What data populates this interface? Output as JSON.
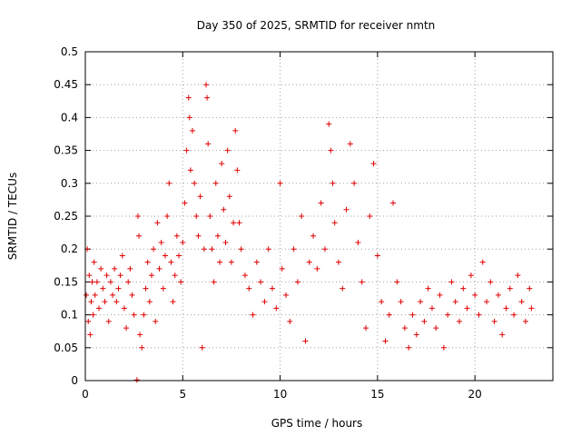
{
  "chart_data": {
    "type": "scatter",
    "title": "Day 350 of 2025, SRMTID for receiver nmtn",
    "xlabel": "GPS time / hours",
    "ylabel": "SRMTID / TECUs",
    "xlim": [
      0,
      24
    ],
    "ylim": [
      0,
      0.5
    ],
    "xticks": [
      0,
      5,
      10,
      15,
      20
    ],
    "xtick_labels": [
      "0",
      "5",
      "10",
      "15",
      "20"
    ],
    "yticks": [
      0,
      0.05,
      0.1,
      0.15,
      0.2,
      0.25,
      0.3,
      0.35,
      0.4,
      0.45,
      0.5
    ],
    "ytick_labels": [
      "0",
      "0.05",
      "0.1",
      "0.15",
      "0.2",
      "0.25",
      "0.3",
      "0.35",
      "0.4",
      "0.45",
      "0.5"
    ],
    "grid": true,
    "marker": "+",
    "series": [
      {
        "name": "SRMTID",
        "color": "#e00000",
        "points": [
          [
            0.05,
            0.13
          ],
          [
            0.1,
            0.2
          ],
          [
            0.15,
            0.09
          ],
          [
            0.2,
            0.16
          ],
          [
            0.25,
            0.07
          ],
          [
            0.3,
            0.12
          ],
          [
            0.35,
            0.15
          ],
          [
            0.4,
            0.1
          ],
          [
            0.45,
            0.18
          ],
          [
            0.5,
            0.13
          ],
          [
            0.6,
            0.15
          ],
          [
            0.7,
            0.11
          ],
          [
            0.8,
            0.17
          ],
          [
            0.9,
            0.14
          ],
          [
            1.0,
            0.12
          ],
          [
            1.1,
            0.16
          ],
          [
            1.2,
            0.09
          ],
          [
            1.3,
            0.15
          ],
          [
            1.4,
            0.13
          ],
          [
            1.5,
            0.17
          ],
          [
            1.6,
            0.12
          ],
          [
            1.7,
            0.14
          ],
          [
            1.8,
            0.16
          ],
          [
            1.9,
            0.19
          ],
          [
            2.0,
            0.11
          ],
          [
            2.1,
            0.08
          ],
          [
            2.2,
            0.15
          ],
          [
            2.3,
            0.17
          ],
          [
            2.4,
            0.13
          ],
          [
            2.5,
            0.1
          ],
          [
            2.65,
            0.001
          ],
          [
            2.7,
            0.25
          ],
          [
            2.75,
            0.22
          ],
          [
            2.8,
            0.07
          ],
          [
            2.9,
            0.05
          ],
          [
            3.0,
            0.1
          ],
          [
            3.1,
            0.14
          ],
          [
            3.2,
            0.18
          ],
          [
            3.3,
            0.12
          ],
          [
            3.4,
            0.16
          ],
          [
            3.5,
            0.2
          ],
          [
            3.6,
            0.09
          ],
          [
            3.7,
            0.24
          ],
          [
            3.8,
            0.17
          ],
          [
            3.9,
            0.21
          ],
          [
            4.0,
            0.14
          ],
          [
            4.1,
            0.19
          ],
          [
            4.2,
            0.25
          ],
          [
            4.3,
            0.3
          ],
          [
            4.4,
            0.18
          ],
          [
            4.5,
            0.12
          ],
          [
            4.6,
            0.16
          ],
          [
            4.7,
            0.22
          ],
          [
            4.8,
            0.19
          ],
          [
            4.9,
            0.15
          ],
          [
            5.0,
            0.21
          ],
          [
            5.1,
            0.27
          ],
          [
            5.2,
            0.35
          ],
          [
            5.3,
            0.43
          ],
          [
            5.35,
            0.4
          ],
          [
            5.4,
            0.32
          ],
          [
            5.5,
            0.38
          ],
          [
            5.6,
            0.3
          ],
          [
            5.7,
            0.25
          ],
          [
            5.8,
            0.22
          ],
          [
            5.9,
            0.28
          ],
          [
            6.0,
            0.05
          ],
          [
            6.1,
            0.2
          ],
          [
            6.2,
            0.45
          ],
          [
            6.25,
            0.43
          ],
          [
            6.3,
            0.36
          ],
          [
            6.4,
            0.25
          ],
          [
            6.5,
            0.2
          ],
          [
            6.6,
            0.15
          ],
          [
            6.7,
            0.3
          ],
          [
            6.8,
            0.22
          ],
          [
            6.9,
            0.18
          ],
          [
            7.0,
            0.33
          ],
          [
            7.1,
            0.26
          ],
          [
            7.2,
            0.21
          ],
          [
            7.3,
            0.35
          ],
          [
            7.4,
            0.28
          ],
          [
            7.5,
            0.18
          ],
          [
            7.6,
            0.24
          ],
          [
            7.7,
            0.38
          ],
          [
            7.8,
            0.32
          ],
          [
            7.9,
            0.24
          ],
          [
            8.0,
            0.2
          ],
          [
            8.2,
            0.16
          ],
          [
            8.4,
            0.14
          ],
          [
            8.6,
            0.1
          ],
          [
            8.8,
            0.18
          ],
          [
            9.0,
            0.15
          ],
          [
            9.2,
            0.12
          ],
          [
            9.4,
            0.2
          ],
          [
            9.6,
            0.14
          ],
          [
            9.8,
            0.11
          ],
          [
            10.0,
            0.3
          ],
          [
            10.1,
            0.17
          ],
          [
            10.3,
            0.13
          ],
          [
            10.5,
            0.09
          ],
          [
            10.7,
            0.2
          ],
          [
            10.9,
            0.15
          ],
          [
            11.1,
            0.25
          ],
          [
            11.3,
            0.06
          ],
          [
            11.5,
            0.18
          ],
          [
            11.7,
            0.22
          ],
          [
            11.9,
            0.17
          ],
          [
            12.1,
            0.27
          ],
          [
            12.3,
            0.2
          ],
          [
            12.5,
            0.39
          ],
          [
            12.6,
            0.35
          ],
          [
            12.7,
            0.3
          ],
          [
            12.8,
            0.24
          ],
          [
            13.0,
            0.18
          ],
          [
            13.2,
            0.14
          ],
          [
            13.4,
            0.26
          ],
          [
            13.6,
            0.36
          ],
          [
            13.8,
            0.3
          ],
          [
            14.0,
            0.21
          ],
          [
            14.2,
            0.15
          ],
          [
            14.4,
            0.08
          ],
          [
            14.6,
            0.25
          ],
          [
            14.8,
            0.33
          ],
          [
            15.0,
            0.19
          ],
          [
            15.2,
            0.12
          ],
          [
            15.4,
            0.06
          ],
          [
            15.6,
            0.1
          ],
          [
            15.8,
            0.27
          ],
          [
            16.0,
            0.15
          ],
          [
            16.2,
            0.12
          ],
          [
            16.4,
            0.08
          ],
          [
            16.6,
            0.05
          ],
          [
            16.8,
            0.1
          ],
          [
            17.0,
            0.07
          ],
          [
            17.2,
            0.12
          ],
          [
            17.4,
            0.09
          ],
          [
            17.6,
            0.14
          ],
          [
            17.8,
            0.11
          ],
          [
            18.0,
            0.08
          ],
          [
            18.2,
            0.13
          ],
          [
            18.4,
            0.05
          ],
          [
            18.6,
            0.1
          ],
          [
            18.8,
            0.15
          ],
          [
            19.0,
            0.12
          ],
          [
            19.2,
            0.09
          ],
          [
            19.4,
            0.14
          ],
          [
            19.6,
            0.11
          ],
          [
            19.8,
            0.16
          ],
          [
            20.0,
            0.13
          ],
          [
            20.2,
            0.1
          ],
          [
            20.4,
            0.18
          ],
          [
            20.6,
            0.12
          ],
          [
            20.8,
            0.15
          ],
          [
            21.0,
            0.09
          ],
          [
            21.2,
            0.13
          ],
          [
            21.4,
            0.07
          ],
          [
            21.6,
            0.11
          ],
          [
            21.8,
            0.14
          ],
          [
            22.0,
            0.1
          ],
          [
            22.2,
            0.16
          ],
          [
            22.4,
            0.12
          ],
          [
            22.6,
            0.09
          ],
          [
            22.8,
            0.14
          ],
          [
            22.9,
            0.11
          ]
        ]
      }
    ]
  }
}
